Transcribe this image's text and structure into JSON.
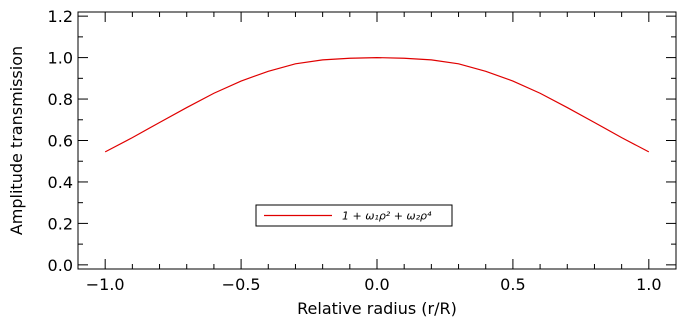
{
  "chart_data": {
    "type": "line",
    "title": "",
    "xlabel": "Relative radius (r/R)",
    "ylabel": "Amplitude transmission",
    "xlim": [
      -1.1,
      1.1
    ],
    "ylim": [
      -0.02,
      1.22
    ],
    "x_ticks": [
      -1.0,
      -0.5,
      0.0,
      0.5,
      1.0
    ],
    "x_tick_labels": [
      "−1.0",
      "−0.5",
      "0.0",
      "0.5",
      "1.0"
    ],
    "y_ticks": [
      0.0,
      0.2,
      0.4,
      0.6,
      0.8,
      1.0,
      1.2
    ],
    "y_tick_labels": [
      "0.0",
      "0.2",
      "0.4",
      "0.6",
      "0.8",
      "1.0",
      "1.2"
    ],
    "grid": false,
    "legend_position": "lower-center",
    "series": [
      {
        "name": "1 + ω₁ρ² + ω₂ρ⁴",
        "color": "#e00000",
        "x": [
          -1.0,
          -0.9,
          -0.8,
          -0.7,
          -0.6,
          -0.5,
          -0.4,
          -0.3,
          -0.2,
          -0.1,
          0.0,
          0.1,
          0.2,
          0.3,
          0.4,
          0.5,
          0.6,
          0.7,
          0.8,
          0.9,
          1.0
        ],
        "y": [
          0.545,
          0.614,
          0.687,
          0.759,
          0.828,
          0.887,
          0.934,
          0.97,
          0.989,
          0.997,
          1.0,
          0.997,
          0.989,
          0.97,
          0.934,
          0.887,
          0.828,
          0.759,
          0.687,
          0.614,
          0.545
        ]
      }
    ]
  }
}
